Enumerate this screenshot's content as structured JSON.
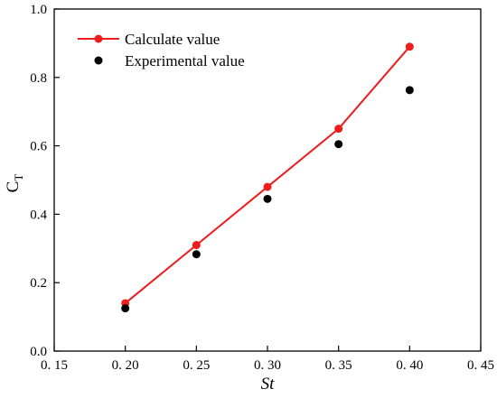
{
  "chart_data": {
    "type": "line",
    "title": "",
    "xlabel": "St",
    "ylabel": "C",
    "ylabel_sub": "T",
    "xlim": [
      0.15,
      0.45
    ],
    "ylim": [
      0.0,
      1.0
    ],
    "xticks": [
      0.15,
      0.2,
      0.25,
      0.3,
      0.35,
      0.4,
      0.45
    ],
    "xtick_labels": [
      "0. 15",
      "0. 20",
      "0. 25",
      "0. 30",
      "0. 35",
      "0. 40",
      "0. 45"
    ],
    "yticks": [
      0.0,
      0.2,
      0.4,
      0.6,
      0.8,
      1.0
    ],
    "ytick_labels": [
      "0.0",
      "0.2",
      "0.4",
      "0.6",
      "0.8",
      "1.0"
    ],
    "grid": false,
    "legend_position": "top-left",
    "series": [
      {
        "name": "Calculate value",
        "style": "line-marker",
        "color": "#ee1c1c",
        "x": [
          0.2,
          0.25,
          0.3,
          0.35,
          0.4
        ],
        "y": [
          0.14,
          0.31,
          0.48,
          0.65,
          0.89
        ]
      },
      {
        "name": "Experimental value",
        "style": "marker",
        "color": "#000000",
        "x": [
          0.2,
          0.25,
          0.3,
          0.35,
          0.4
        ],
        "y": [
          0.125,
          0.283,
          0.445,
          0.605,
          0.763
        ]
      }
    ]
  }
}
